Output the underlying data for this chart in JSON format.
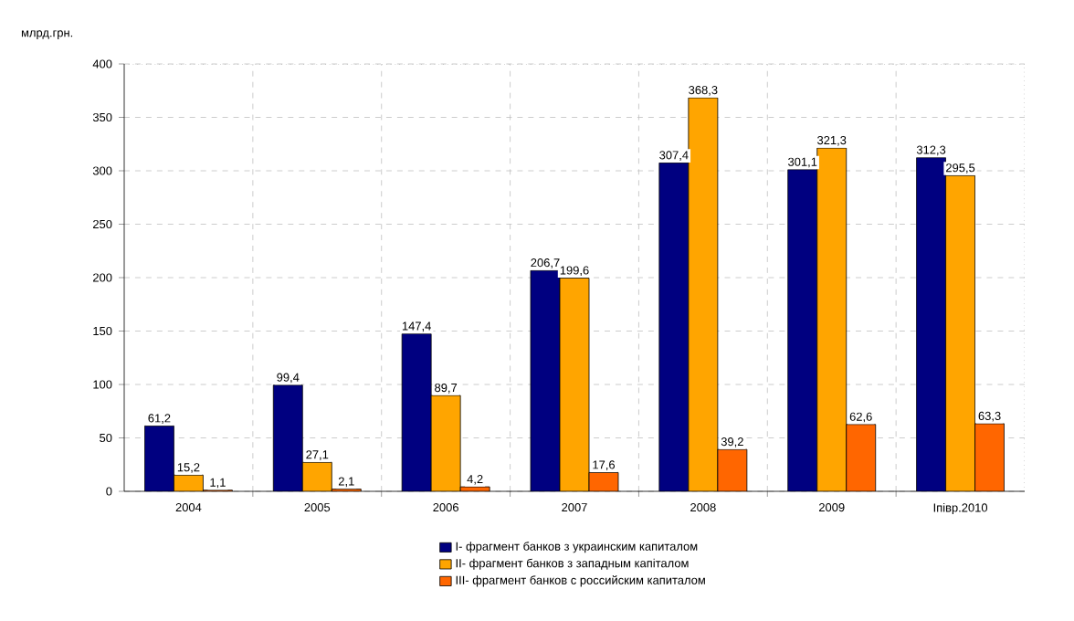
{
  "chart_data": {
    "type": "bar",
    "ylabel": "млрд.грн.",
    "categories": [
      "2004",
      "2005",
      "2006",
      "2007",
      "2008",
      "2009",
      "Іпівр.2010"
    ],
    "series": [
      {
        "name": "I- фрагмент банков з украинским капиталом",
        "color": "#000080",
        "values": [
          61.2,
          99.4,
          147.4,
          206.7,
          307.4,
          301.1,
          312.3
        ],
        "value_labels": [
          "61,2",
          "99,4",
          "147,4",
          "206,7",
          "307,4",
          "301,1",
          "312,3"
        ]
      },
      {
        "name": "II- фрагмент банков з западным капіталом",
        "color": "#ffa500",
        "values": [
          15.2,
          27.1,
          89.7,
          199.6,
          368.3,
          321.3,
          295.5
        ],
        "value_labels": [
          "15,2",
          "27,1",
          "89,7",
          "199,6",
          "368,3",
          "321,3",
          "295,5"
        ]
      },
      {
        "name": "III- фрагмент банков с российским капиталом",
        "color": "#ff6600",
        "values": [
          1.1,
          2.1,
          4.2,
          17.6,
          39.2,
          62.6,
          63.3
        ],
        "value_labels": [
          "1,1",
          "2,1",
          "4,2",
          "17,6",
          "39,2",
          "62,6",
          "63,3"
        ]
      }
    ],
    "ylim": [
      0,
      400
    ],
    "yticks": [
      0,
      50,
      100,
      150,
      200,
      250,
      300,
      350,
      400
    ],
    "grid": true,
    "legend": "bottom"
  }
}
